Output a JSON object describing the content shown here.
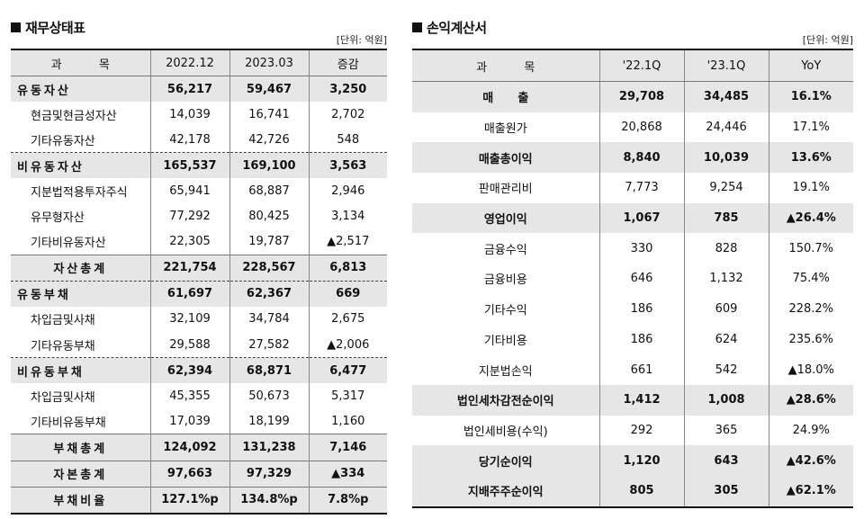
{
  "balance": {
    "title": "재무상태표",
    "unit": "[단위: 억원]",
    "headers": [
      "과          목",
      "2022.12",
      "2023.03",
      "증감"
    ],
    "rows": [
      {
        "label": "유동자산",
        "v1": "56,217",
        "v2": "59,467",
        "v3": "3,250",
        "style": "cat"
      },
      {
        "label": "현금및현금성자산",
        "v1": "14,039",
        "v2": "16,741",
        "v3": "2,702",
        "style": "ind"
      },
      {
        "label": "기타유동자산",
        "v1": "42,178",
        "v2": "42,726",
        "v3": "548",
        "style": "ind"
      },
      {
        "label": "비유동자산",
        "v1": "165,537",
        "v2": "169,100",
        "v3": "3,563",
        "style": "cat"
      },
      {
        "label": "지분법적용투자주식",
        "v1": "65,941",
        "v2": "68,887",
        "v3": "2,946",
        "style": "ind"
      },
      {
        "label": "유무형자산",
        "v1": "77,292",
        "v2": "80,425",
        "v3": "3,134",
        "style": "ind"
      },
      {
        "label": "기타비유동자산",
        "v1": "22,305",
        "v2": "19,787",
        "v3": "▲2,517",
        "style": "ind"
      },
      {
        "label": "자산총계",
        "v1": "221,754",
        "v2": "228,567",
        "v3": "6,813",
        "style": "tot"
      },
      {
        "label": "유동부채",
        "v1": "61,697",
        "v2": "62,367",
        "v3": "669",
        "style": "cat"
      },
      {
        "label": "차입금및사채",
        "v1": "32,109",
        "v2": "34,784",
        "v3": "2,675",
        "style": "ind"
      },
      {
        "label": "기타유동부채",
        "v1": "29,588",
        "v2": "27,582",
        "v3": "▲2,006",
        "style": "ind"
      },
      {
        "label": "비유동부채",
        "v1": "62,394",
        "v2": "68,871",
        "v3": "6,477",
        "style": "cat"
      },
      {
        "label": "차입금및사채",
        "v1": "45,355",
        "v2": "50,673",
        "v3": "5,317",
        "style": "ind"
      },
      {
        "label": "기타비유동부채",
        "v1": "17,039",
        "v2": "18,199",
        "v3": "1,160",
        "style": "ind"
      },
      {
        "label": "부채총계",
        "v1": "124,092",
        "v2": "131,238",
        "v3": "7,146",
        "style": "tot"
      },
      {
        "label": "자본총계",
        "v1": "97,663",
        "v2": "97,329",
        "v3": "▲334",
        "style": "tot"
      },
      {
        "label": "부채비율",
        "v1": "127.1%p",
        "v2": "134.8%p",
        "v3": "7.8%p",
        "style": "ratio"
      }
    ]
  },
  "income": {
    "title": "손익계산서",
    "unit": "[단위: 억원]",
    "headers": [
      "과          목",
      "'22.1Q",
      "'23.1Q",
      "YoY"
    ],
    "rows": [
      {
        "label": "매      출",
        "v1": "29,708",
        "v2": "34,485",
        "v3": "16.1%",
        "hl": true
      },
      {
        "label": "매출원가",
        "v1": "20,868",
        "v2": "24,446",
        "v3": "17.1%",
        "hl": false
      },
      {
        "label": "매출총이익",
        "v1": "8,840",
        "v2": "10,039",
        "v3": "13.6%",
        "hl": true
      },
      {
        "label": "판매관리비",
        "v1": "7,773",
        "v2": "9,254",
        "v3": "19.1%",
        "hl": false
      },
      {
        "label": "영업이익",
        "v1": "1,067",
        "v2": "785",
        "v3": "▲26.4%",
        "hl": true
      },
      {
        "label": "금융수익",
        "v1": "330",
        "v2": "828",
        "v3": "150.7%",
        "hl": false
      },
      {
        "label": "금융비용",
        "v1": "646",
        "v2": "1,132",
        "v3": "75.4%",
        "hl": false
      },
      {
        "label": "기타수익",
        "v1": "186",
        "v2": "609",
        "v3": "228.2%",
        "hl": false
      },
      {
        "label": "기타비용",
        "v1": "186",
        "v2": "624",
        "v3": "235.6%",
        "hl": false
      },
      {
        "label": "지분법손익",
        "v1": "661",
        "v2": "542",
        "v3": "▲18.0%",
        "hl": false
      },
      {
        "label": "법인세차감전순이익",
        "v1": "1,412",
        "v2": "1,008",
        "v3": "▲28.6%",
        "hl": true
      },
      {
        "label": "법인세비용(수익)",
        "v1": "292",
        "v2": "365",
        "v3": "24.9%",
        "hl": false
      },
      {
        "label": "당기순이익",
        "v1": "1,120",
        "v2": "643",
        "v3": "▲42.6%",
        "hl": true
      },
      {
        "label": "지배주주순이익",
        "v1": "805",
        "v2": "305",
        "v3": "▲62.1%",
        "hl": true
      }
    ]
  }
}
